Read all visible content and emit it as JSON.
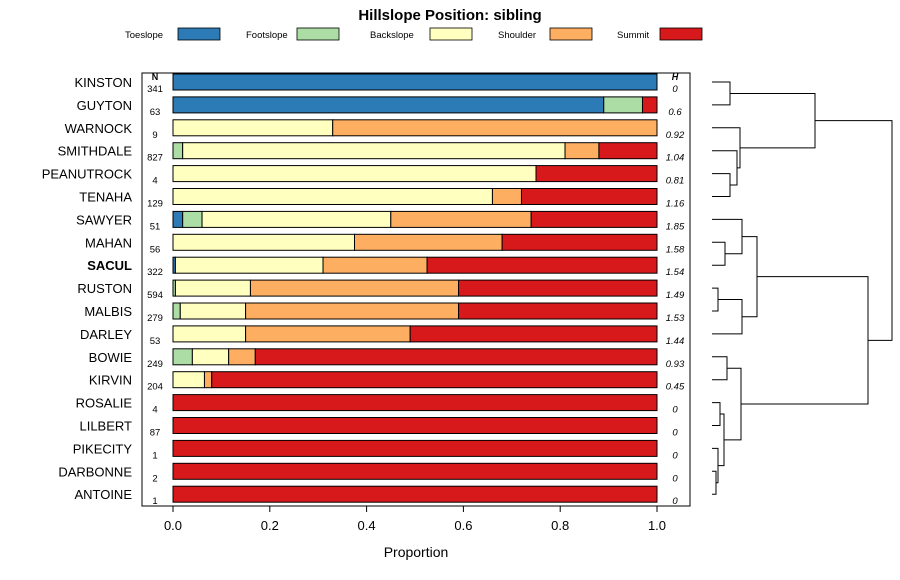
{
  "chart_data": {
    "type": "bar",
    "orientation": "horizontal",
    "stacked": true,
    "title": "Hillslope Position: sibling",
    "xlabel": "Proportion",
    "ylabel": "",
    "xlim": [
      0,
      1
    ],
    "x_ticks": [
      "0.0",
      "0.2",
      "0.4",
      "0.6",
      "0.8",
      "1.0"
    ],
    "n_header": "N",
    "h_header": "H",
    "highlighted_category": "SACUL",
    "legend": [
      {
        "name": "Toeslope",
        "color": "#2c7bb6"
      },
      {
        "name": "Footslope",
        "color": "#abdda4"
      },
      {
        "name": "Backslope",
        "color": "#ffffbf"
      },
      {
        "name": "Shoulder",
        "color": "#fdae61"
      },
      {
        "name": "Summit",
        "color": "#d7191c"
      }
    ],
    "categories": [
      "KINSTON",
      "GUYTON",
      "WARNOCK",
      "SMITHDALE",
      "PEANUTROCK",
      "TENAHA",
      "SAWYER",
      "MAHAN",
      "SACUL",
      "RUSTON",
      "MALBIS",
      "DARLEY",
      "BOWIE",
      "KIRVIN",
      "ROSALIE",
      "LILBERT",
      "PIKECITY",
      "DARBONNE",
      "ANTOINE"
    ],
    "n": [
      "341",
      "63",
      "9",
      "827",
      "4",
      "129",
      "51",
      "56",
      "322",
      "594",
      "279",
      "53",
      "249",
      "204",
      "4",
      "87",
      "1",
      "2",
      "1"
    ],
    "h": [
      "0",
      "0.6",
      "0.92",
      "1.04",
      "0.81",
      "1.16",
      "1.85",
      "1.58",
      "1.54",
      "1.49",
      "1.53",
      "1.44",
      "0.93",
      "0.45",
      "0",
      "0",
      "0",
      "0",
      "0"
    ],
    "series": [
      {
        "name": "Toeslope",
        "values": [
          1.0,
          0.89,
          0.0,
          0.0,
          0.0,
          0.0,
          0.02,
          0.0,
          0.005,
          0.0,
          0.0,
          0.0,
          0.0,
          0.0,
          0,
          0,
          0,
          0,
          0
        ]
      },
      {
        "name": "Footslope",
        "values": [
          0.0,
          0.08,
          0.0,
          0.02,
          0.0,
          0.0,
          0.04,
          0.0,
          0.0,
          0.005,
          0.015,
          0.0,
          0.04,
          0.0,
          0,
          0,
          0,
          0,
          0
        ]
      },
      {
        "name": "Backslope",
        "values": [
          0.0,
          0.0,
          0.33,
          0.79,
          0.75,
          0.66,
          0.39,
          0.375,
          0.305,
          0.155,
          0.135,
          0.15,
          0.075,
          0.065,
          0,
          0,
          0,
          0,
          0
        ]
      },
      {
        "name": "Shoulder",
        "values": [
          0.0,
          0.0,
          0.67,
          0.07,
          0.0,
          0.06,
          0.29,
          0.305,
          0.215,
          0.43,
          0.44,
          0.34,
          0.055,
          0.015,
          0,
          0,
          0,
          0,
          0
        ]
      },
      {
        "name": "Summit",
        "values": [
          0.0,
          0.03,
          0.0,
          0.12,
          0.25,
          0.28,
          0.26,
          0.32,
          0.475,
          0.41,
          0.41,
          0.51,
          0.83,
          0.92,
          1,
          1,
          1,
          1,
          1
        ]
      }
    ]
  }
}
